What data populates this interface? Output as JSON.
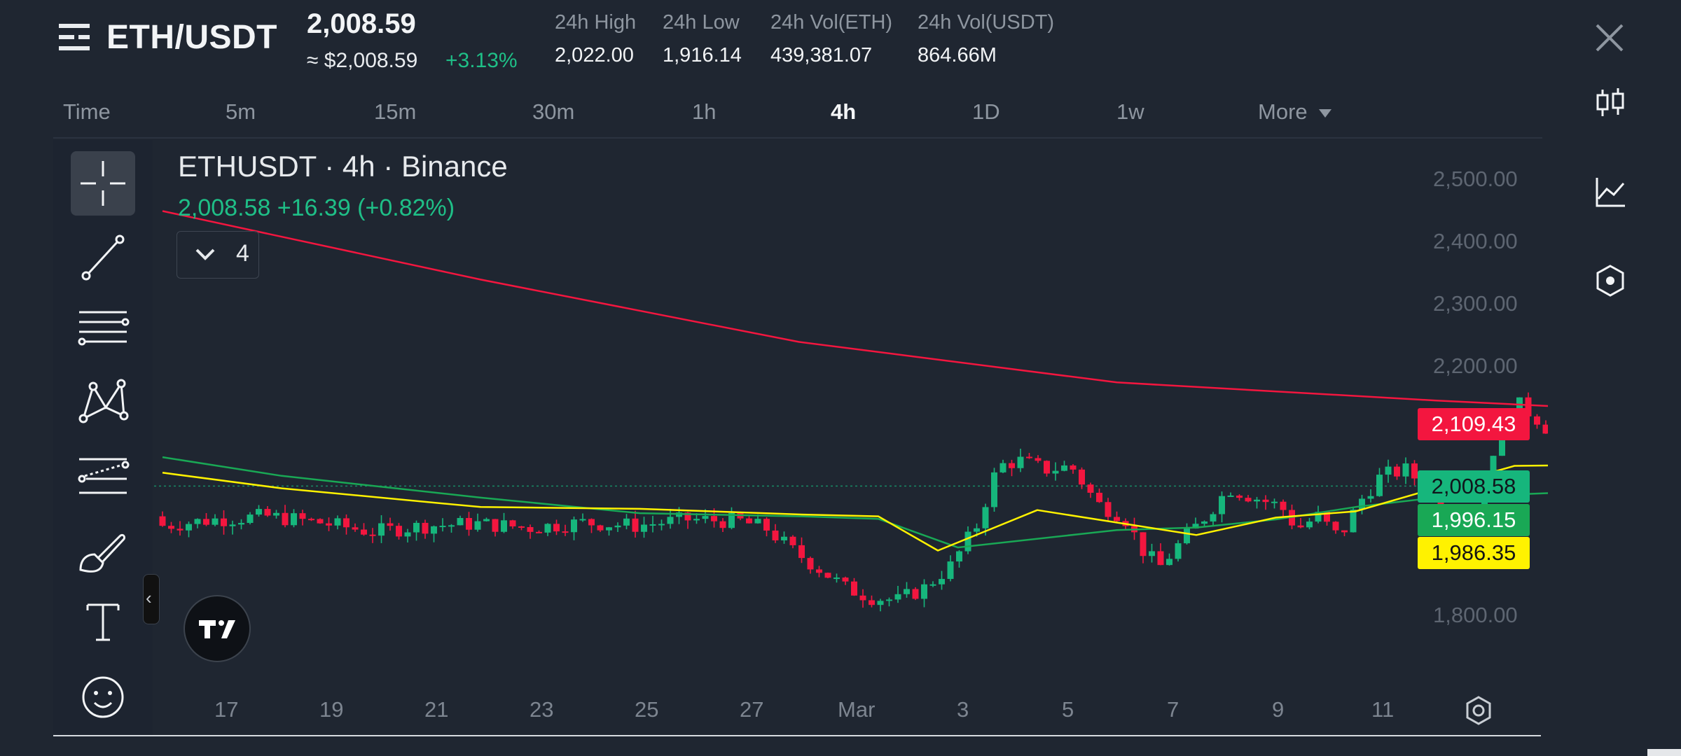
{
  "header": {
    "pair": "ETH/USDT",
    "last_price": "2,008.59",
    "usd_price": "≈ $2,008.59",
    "change_pct": "+3.13%",
    "stats": [
      {
        "label": "24h High",
        "value": "2,022.00"
      },
      {
        "label": "24h Low",
        "value": "1,916.14"
      },
      {
        "label": "24h Vol(ETH)",
        "value": "439,381.07"
      },
      {
        "label": "24h Vol(USDT)",
        "value": "864.66M"
      }
    ]
  },
  "tabs": {
    "time_label": "Time",
    "items": [
      {
        "label": "5m",
        "active": false
      },
      {
        "label": "15m",
        "active": false
      },
      {
        "label": "30m",
        "active": false
      },
      {
        "label": "1h",
        "active": false
      },
      {
        "label": "4h",
        "active": true
      },
      {
        "label": "1D",
        "active": false
      },
      {
        "label": "1w",
        "active": false
      }
    ],
    "more_label": "More"
  },
  "legend": {
    "title": "ETHUSDT · 4h · Binance",
    "price_line": "2,008.58  +16.39 (+0.82%)",
    "indicator_count": "4"
  },
  "right_icons": [
    "candlestick-icon",
    "line-chart-icon",
    "indicator-hexagon-icon"
  ],
  "toolbar": [
    "crosshair-icon",
    "trend-line-icon",
    "horizontal-lines-icon",
    "pattern-icon",
    "fib-levels-icon",
    "brush-icon",
    "text-icon",
    "emoji-icon"
  ],
  "colors": {
    "up": "#16b67c",
    "down": "#f3163f",
    "ma_long": "#f3163f",
    "ma_mid": "#19a855",
    "ma_short": "#fff200",
    "background": "#1f2631"
  },
  "chart_data": {
    "type": "candlestick",
    "symbol": "ETHUSDT",
    "interval": "4h",
    "exchange": "Binance",
    "y_ticks": [
      "2,500.00",
      "2,400.00",
      "2,300.00",
      "2,200.00",
      "1,800.00"
    ],
    "x_ticks": [
      "17",
      "19",
      "21",
      "23",
      "25",
      "27",
      "Mar",
      "3",
      "5",
      "7",
      "9",
      "11"
    ],
    "ylim": [
      1750,
      2520
    ],
    "last_price": "2,008.58",
    "ma_labels": {
      "red": "2,109.43",
      "green": "1,996.15",
      "yellow": "1,986.35"
    },
    "ma_red_path": [
      [
        0,
        2450
      ],
      [
        8,
        2340
      ],
      [
        16,
        2240
      ],
      [
        24,
        2175
      ],
      [
        32,
        2146
      ],
      [
        40,
        2121
      ],
      [
        44,
        2110
      ]
    ],
    "ma_green_path": [
      [
        0,
        2055
      ],
      [
        3,
        2025
      ],
      [
        8,
        1990
      ],
      [
        12,
        1965
      ],
      [
        16,
        1960
      ],
      [
        18,
        1956
      ],
      [
        20,
        1910
      ],
      [
        24,
        1938
      ],
      [
        26,
        1942
      ],
      [
        28,
        1955
      ],
      [
        30,
        1975
      ],
      [
        32,
        1990
      ],
      [
        34,
        1995
      ],
      [
        36,
        2000
      ],
      [
        38,
        1998
      ],
      [
        40,
        1993
      ],
      [
        42,
        1994
      ],
      [
        44,
        1996
      ]
    ],
    "ma_yellow_path": [
      [
        0,
        2030
      ],
      [
        3,
        2005
      ],
      [
        8,
        1975
      ],
      [
        12,
        1972
      ],
      [
        16,
        1963
      ],
      [
        18,
        1960
      ],
      [
        19.5,
        1905
      ],
      [
        22,
        1970
      ],
      [
        26,
        1930
      ],
      [
        28,
        1958
      ],
      [
        30,
        1968
      ],
      [
        32,
        2005
      ],
      [
        34,
        2041
      ],
      [
        35.5,
        2042
      ],
      [
        36,
        2031
      ],
      [
        38,
        2003
      ],
      [
        41,
        1980
      ],
      [
        44,
        1986
      ]
    ],
    "note": "x in days since Feb 15 (Feb 15..Mar 11 at 6 candles/day)"
  }
}
